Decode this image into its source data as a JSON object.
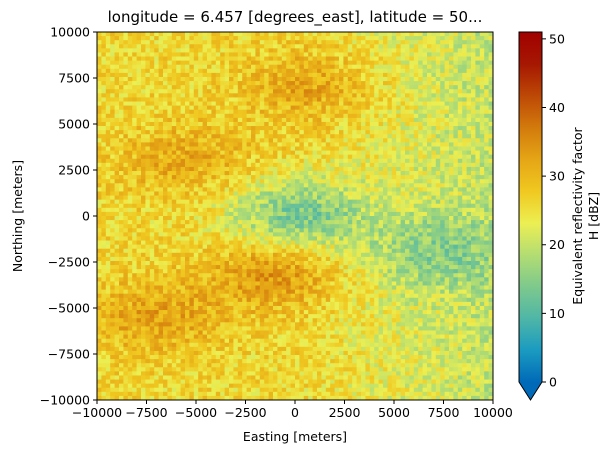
{
  "chart_data": {
    "type": "heatmap",
    "title": "longitude = 6.457 [degrees_east], latitude = 50...",
    "xlabel": "Easting [meters]",
    "ylabel": "Northing [meters]",
    "xlim": [
      -10000,
      10000
    ],
    "ylim": [
      -10000,
      10000
    ],
    "x_ticks": [
      -10000,
      -7500,
      -5000,
      -2500,
      0,
      2500,
      5000,
      7500,
      10000
    ],
    "y_ticks": [
      -10000,
      -7500,
      -5000,
      -2500,
      0,
      2500,
      5000,
      7500,
      10000
    ],
    "x_tick_labels": [
      "−10000",
      "−7500",
      "−5000",
      "−2500",
      "0",
      "2500",
      "5000",
      "7500",
      "10000"
    ],
    "y_tick_labels": [
      "−10000",
      "−7500",
      "−5000",
      "−2500",
      "0",
      "2500",
      "5000",
      "7500",
      "10000"
    ],
    "grid": false,
    "colorbar": {
      "label_line1": "Equivalent reflectivity factor",
      "label_line2": "H [dBZ]",
      "vmin": 0,
      "vmax": 51,
      "ticks": [
        0,
        10,
        20,
        30,
        40,
        50
      ],
      "tick_labels": [
        "0",
        "10",
        "20",
        "30",
        "40",
        "50"
      ],
      "extend": "min",
      "colormap": [
        "#006ab8",
        "#1b9bc0",
        "#4fb6a6",
        "#7ec98c",
        "#b3dd72",
        "#ecef52",
        "#f0c820",
        "#e5a516",
        "#d27a0c",
        "#bd4806",
        "#a61702",
        "#a10000"
      ]
    },
    "field": {
      "typical_range_dbz": [
        15,
        34
      ],
      "features": [
        {
          "name": "north strong band",
          "center": [
            1000,
            7000
          ],
          "value": 33
        },
        {
          "name": "south-west strong band",
          "center": [
            -7000,
            -5500
          ],
          "value": 33
        },
        {
          "name": "north-west cell",
          "center": [
            -5500,
            3000
          ],
          "value": 32
        },
        {
          "name": "central cell",
          "center": [
            -1000,
            -3000
          ],
          "value": 35
        },
        {
          "name": "east weak region",
          "center": [
            7000,
            -2000
          ],
          "value": 18
        },
        {
          "name": "center clutter",
          "center": [
            0,
            0
          ],
          "value": 12
        }
      ]
    }
  }
}
